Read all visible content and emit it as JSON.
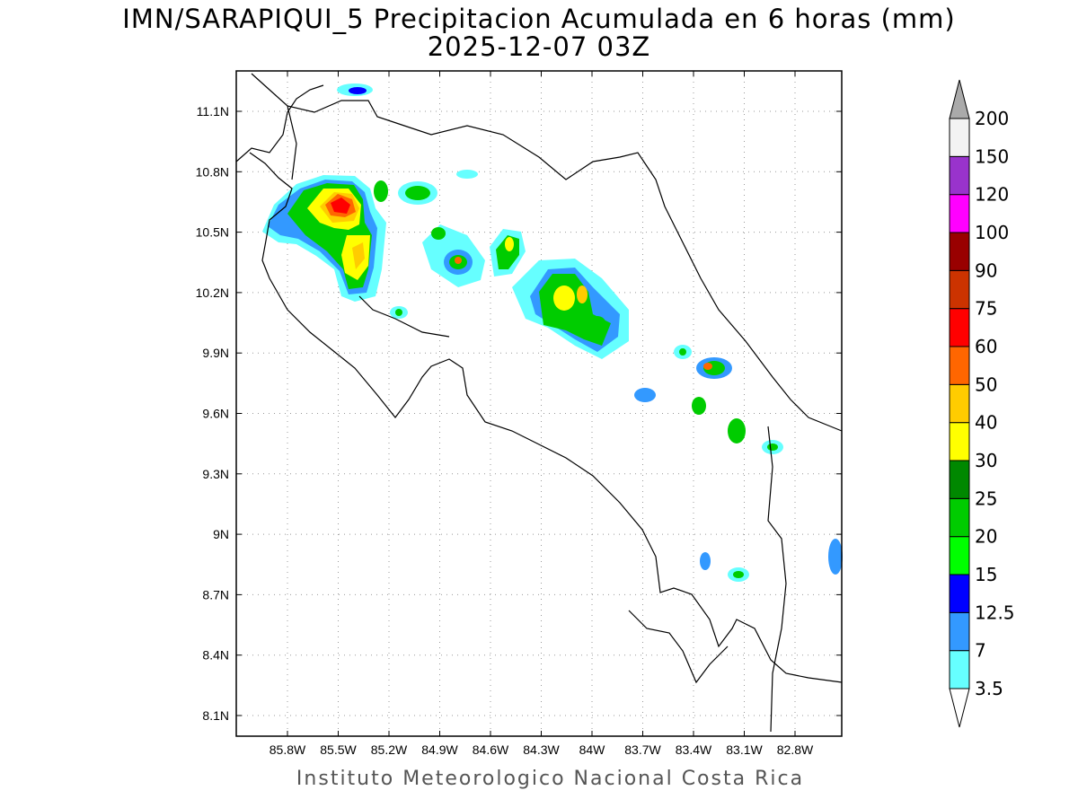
{
  "title": {
    "line1": "IMN/SARAPIQUI_5 Precipitacion Acumulada en 6 horas (mm)",
    "line2": "2025-12-07 03Z"
  },
  "footer": "Instituto Meteorologico Nacional Costa Rica",
  "axes": {
    "lat_ticks": [
      "11.1N",
      "10.8N",
      "10.5N",
      "10.2N",
      "9.9N",
      "9.6N",
      "9.3N",
      "9N",
      "8.7N",
      "8.4N",
      "8.1N"
    ],
    "lon_ticks": [
      "85.8W",
      "85.5W",
      "85.2W",
      "84.9W",
      "84.6W",
      "84.3W",
      "84W",
      "83.7W",
      "83.4W",
      "83.1W",
      "82.8W"
    ],
    "grid": "dotted"
  },
  "colorbar": {
    "levels": [
      {
        "label": "3.5",
        "color": "#66ffff"
      },
      {
        "label": "7",
        "color": "#3399ff"
      },
      {
        "label": "12.5",
        "color": "#0000ff"
      },
      {
        "label": "15",
        "color": "#00ff00"
      },
      {
        "label": "20",
        "color": "#00cc00"
      },
      {
        "label": "25",
        "color": "#008800"
      },
      {
        "label": "30",
        "color": "#ffff00"
      },
      {
        "label": "40",
        "color": "#ffcc00"
      },
      {
        "label": "50",
        "color": "#ff6600"
      },
      {
        "label": "60",
        "color": "#ff0000"
      },
      {
        "label": "75",
        "color": "#cc3300"
      },
      {
        "label": "90",
        "color": "#990000"
      },
      {
        "label": "100",
        "color": "#ff00ff"
      },
      {
        "label": "120",
        "color": "#9933cc"
      },
      {
        "label": "150",
        "color": "#f3f3f3"
      },
      {
        "label": "200",
        "color": "#aaaaaa"
      }
    ]
  }
}
